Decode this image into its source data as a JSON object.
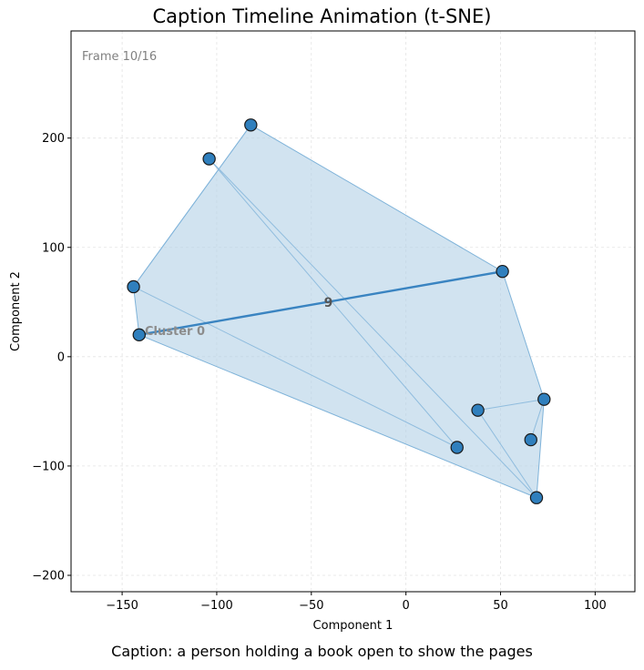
{
  "chart_data": {
    "type": "scatter",
    "title": "Caption Timeline Animation (t-SNE)",
    "frame_label": "Frame 10/16",
    "caption": "Caption: a person holding a book open to show the pages",
    "xlabel": "Component 1",
    "ylabel": "Component 2",
    "xlim": [
      -177,
      121
    ],
    "ylim": [
      -215,
      298
    ],
    "xticks": [
      -150,
      -100,
      -50,
      0,
      50,
      100
    ],
    "xtick_labels": [
      "−150",
      "−100",
      "−50",
      "0",
      "50",
      "100"
    ],
    "yticks": [
      -200,
      -100,
      0,
      100,
      200
    ],
    "ytick_labels": [
      "−200",
      "−100",
      "0",
      "100",
      "200"
    ],
    "grid": true,
    "colors": {
      "point": "#2f7fbd",
      "hull": "#b4d2e7",
      "line": "#7fb3d9",
      "current": "#3a84c1"
    },
    "points": [
      {
        "x": -144,
        "y": 64
      },
      {
        "x": -141,
        "y": 20
      },
      {
        "x": -104,
        "y": 181
      },
      {
        "x": -82,
        "y": 212
      },
      {
        "x": 27,
        "y": -83
      },
      {
        "x": 38,
        "y": -49
      },
      {
        "x": 51,
        "y": 78
      },
      {
        "x": 66,
        "y": -76
      },
      {
        "x": 69,
        "y": -129
      },
      {
        "x": 73,
        "y": -39
      }
    ],
    "hull": [
      {
        "x": -144,
        "y": 64
      },
      {
        "x": -82,
        "y": 212
      },
      {
        "x": 51,
        "y": 78
      },
      {
        "x": 73,
        "y": -39
      },
      {
        "x": 69,
        "y": -129
      },
      {
        "x": -141,
        "y": 20
      }
    ],
    "path": [
      {
        "x": -82,
        "y": 212
      },
      {
        "x": -144,
        "y": 64
      },
      {
        "x": 27,
        "y": -83
      },
      {
        "x": -104,
        "y": 181
      },
      {
        "x": 69,
        "y": -129
      },
      {
        "x": 38,
        "y": -49
      },
      {
        "x": 73,
        "y": -39
      },
      {
        "x": 66,
        "y": -76
      }
    ],
    "current_segment": [
      {
        "x": 51,
        "y": 78
      },
      {
        "x": -141,
        "y": 20
      }
    ],
    "annotations": [
      {
        "text": "9",
        "x": -41,
        "y": 50
      },
      {
        "text": "Cluster 0",
        "x": -138,
        "y": 24
      }
    ]
  }
}
